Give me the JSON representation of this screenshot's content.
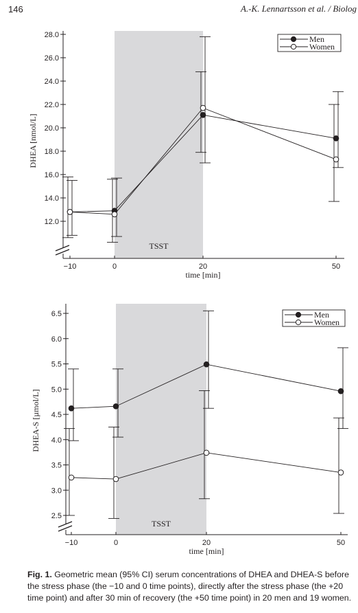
{
  "page_header": {
    "page_number": "146",
    "running_title": "A.-K. Lennartsson et al. / Biolog"
  },
  "figure": {
    "caption_label": "Fig. 1.",
    "caption_text": "Geometric mean (95% CI) serum concentrations of DHEA and DHEA-S before the stress phase (the −10 and 0 time points), directly after the stress phase (the +20 time point) and after 30 min of recovery (the +50 time point) in 20 men and 19 women."
  },
  "chart_data": [
    {
      "type": "line",
      "xlabel": "time [min]",
      "ylabel": "DHEA [nmol/L]",
      "x": [
        -10,
        0,
        20,
        50
      ],
      "x_ticks": [
        "−10",
        "0",
        "20",
        "50"
      ],
      "y_ticks": [
        "12.0",
        "14.0",
        "16.0",
        "18.0",
        "20.0",
        "22.0",
        "24.0",
        "26.0",
        "28.0"
      ],
      "ylim": [
        10,
        28.5
      ],
      "shaded_region": {
        "x_from": 0,
        "x_to": 20,
        "label": "TSST"
      },
      "legend_position": "top-right",
      "axis_break": true,
      "series": [
        {
          "name": "Men",
          "marker": "filled-circle",
          "values": [
            12.8,
            12.9,
            21.1,
            19.1
          ],
          "ci_low": [
            10.8,
            10.7,
            17.0,
            16.6
          ],
          "ci_high": [
            15.5,
            15.7,
            27.8,
            23.1
          ]
        },
        {
          "name": "Women",
          "marker": "open-circle",
          "values": [
            12.8,
            12.6,
            21.7,
            17.3
          ],
          "ci_low": [
            10.6,
            10.2,
            17.9,
            13.7
          ],
          "ci_high": [
            15.8,
            15.6,
            24.8,
            22.0
          ]
        }
      ]
    },
    {
      "type": "line",
      "xlabel": "time [min]",
      "ylabel": "DHEA-S [µmol/L]",
      "x": [
        -10,
        0,
        20,
        50
      ],
      "x_ticks": [
        "−10",
        "0",
        "20",
        "50"
      ],
      "y_ticks": [
        "2.5",
        "3.0",
        "3.5",
        "4.0",
        "4.5",
        "5.0",
        "5.5",
        "6.0",
        "6.5"
      ],
      "ylim": [
        2.15,
        6.65
      ],
      "shaded_region": {
        "x_from": 0,
        "x_to": 20,
        "label": "TSST"
      },
      "legend_position": "top-right",
      "axis_break": true,
      "series": [
        {
          "name": "Men",
          "marker": "filled-circle",
          "values": [
            4.62,
            4.66,
            5.49,
            4.96
          ],
          "ci_low": [
            3.98,
            4.05,
            4.62,
            4.22
          ],
          "ci_high": [
            5.4,
            5.4,
            6.55,
            5.82
          ]
        },
        {
          "name": "Women",
          "marker": "open-circle",
          "values": [
            3.25,
            3.22,
            3.74,
            3.35
          ],
          "ci_low": [
            2.5,
            2.44,
            2.83,
            2.54
          ],
          "ci_high": [
            4.22,
            4.25,
            4.97,
            4.43
          ]
        }
      ]
    }
  ]
}
